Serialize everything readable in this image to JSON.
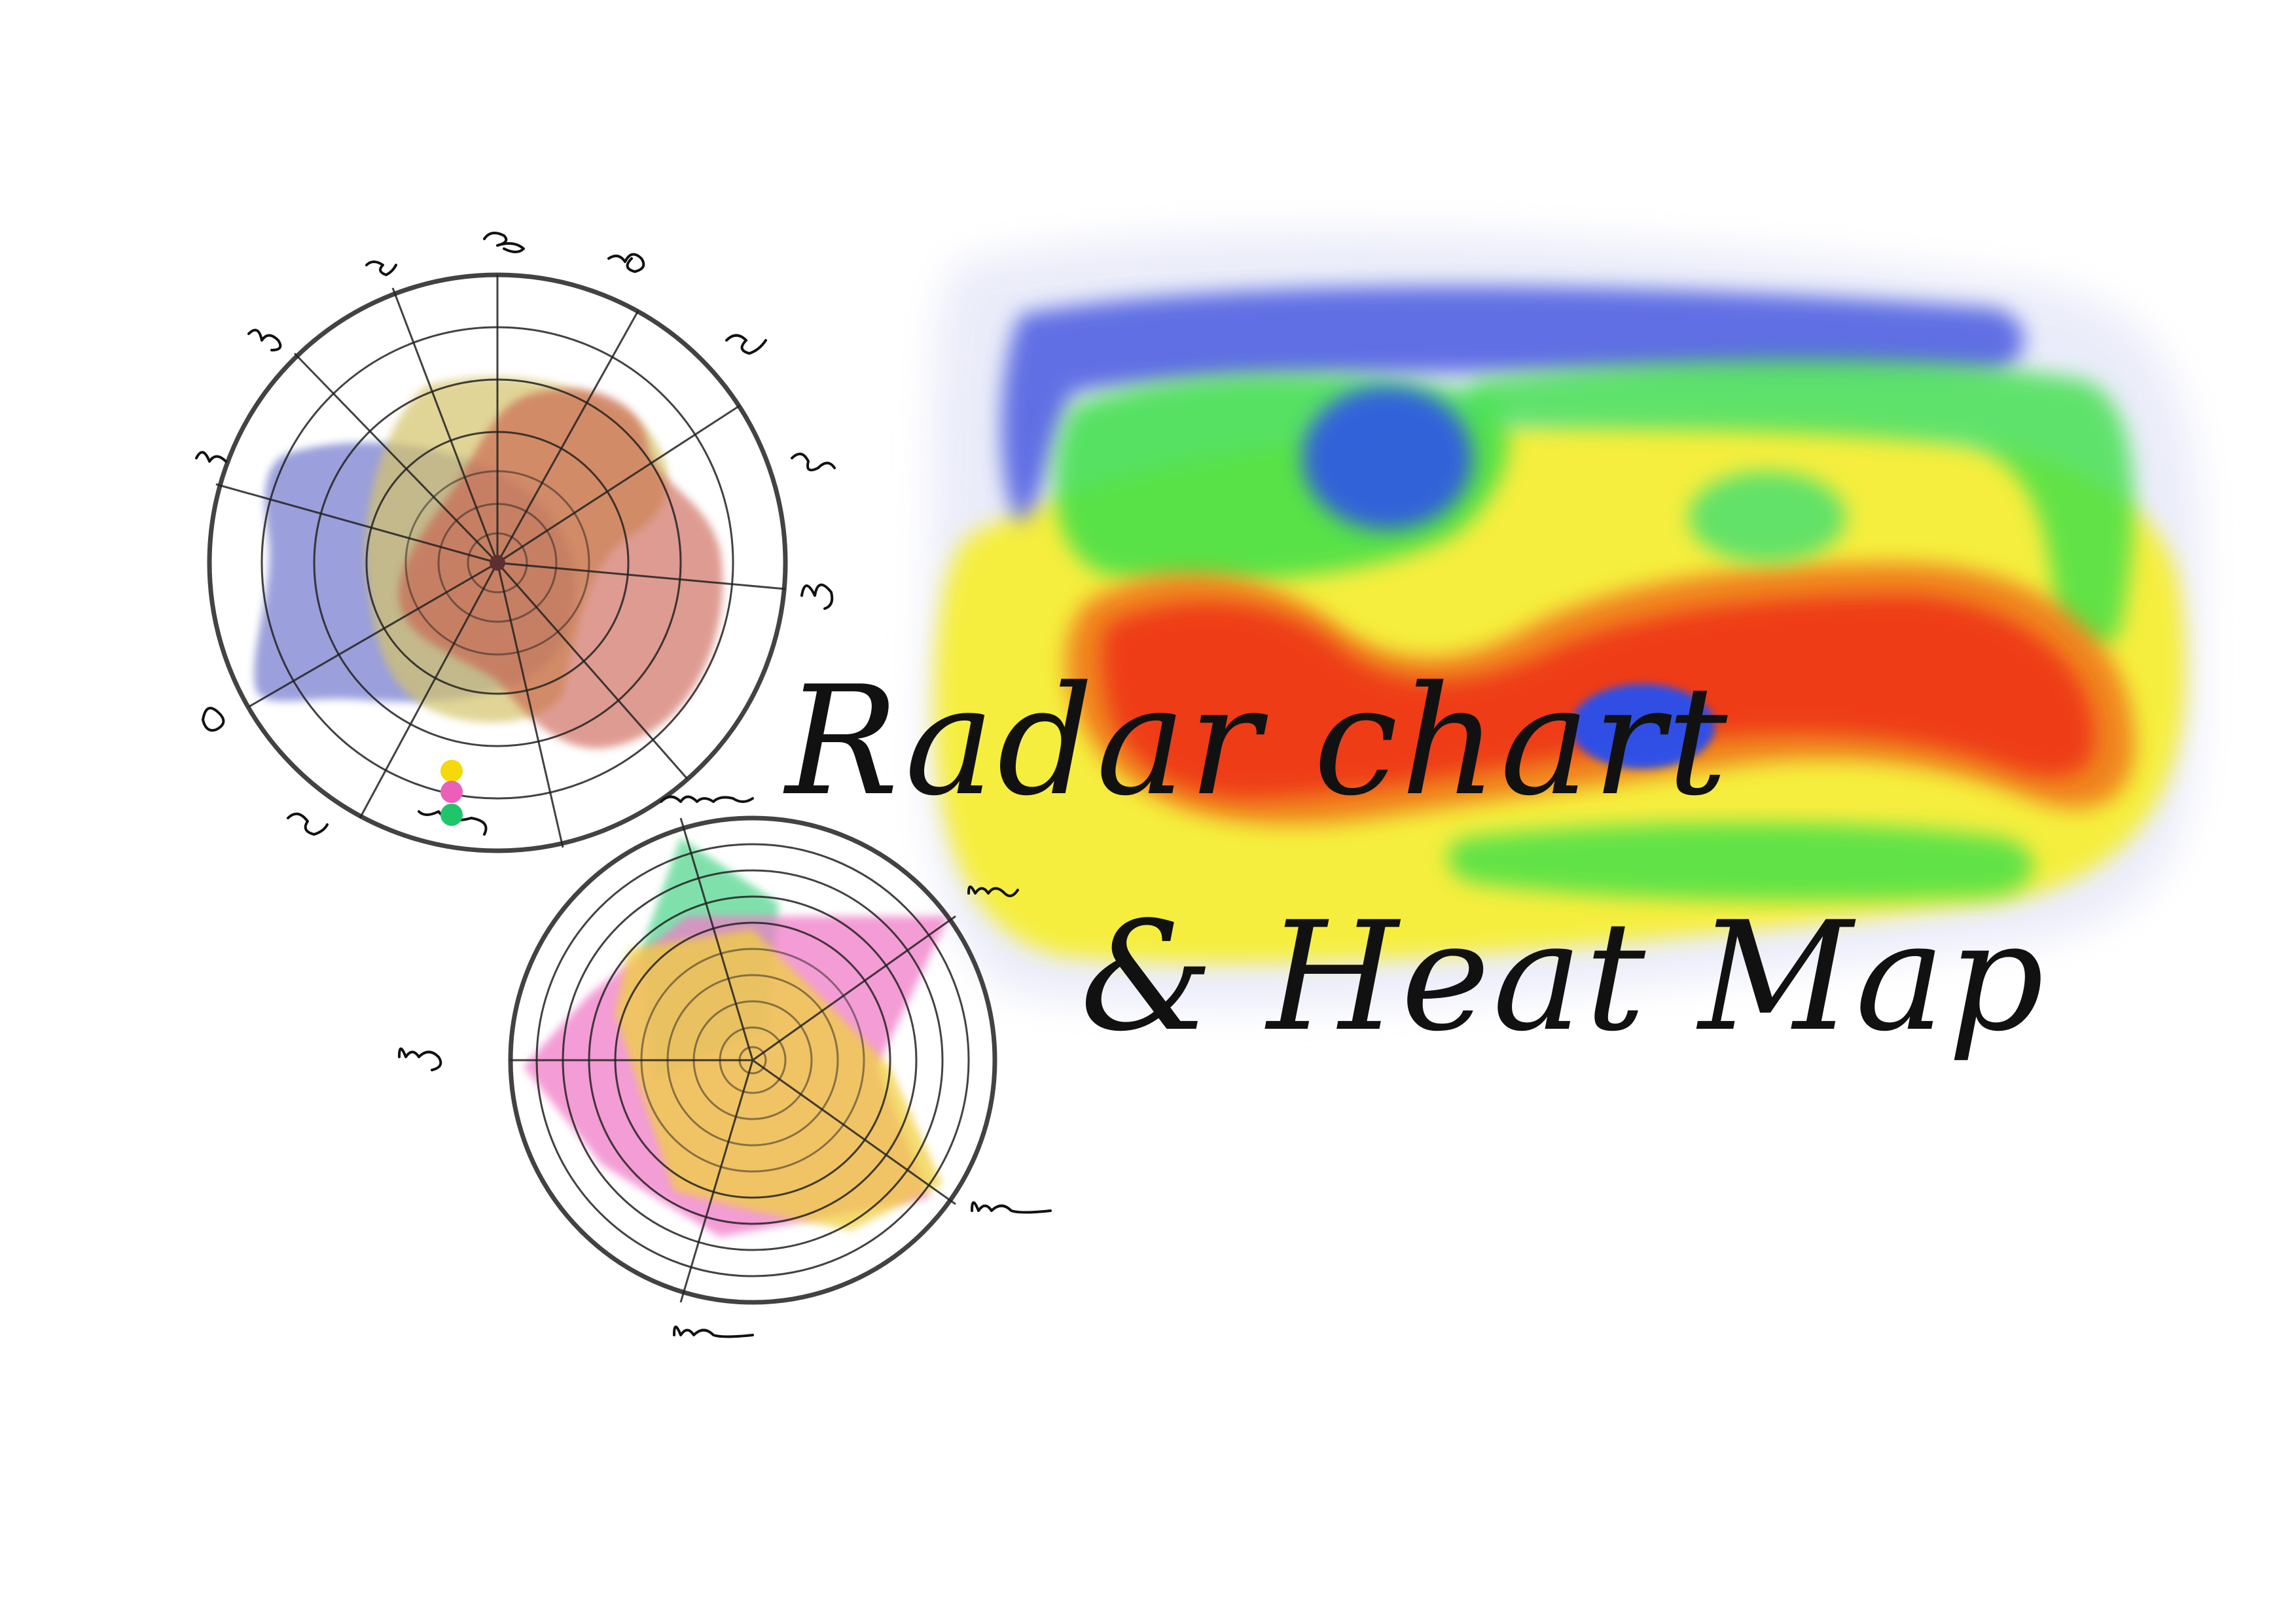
{
  "title": {
    "line1": "Radar chart",
    "line2": "& Heat Map"
  },
  "colors": {
    "radar1_series": [
      "#7a80d0",
      "#d4c46a",
      "#c95a4a"
    ],
    "radar2_series": [
      "#f07cc8",
      "#f0d040",
      "#4cd48a"
    ],
    "legend_dots": [
      "#f5d90a",
      "#ec5fb8",
      "#1fc56a"
    ],
    "heatmap_palette": [
      "#3b4fe0",
      "#3de04a",
      "#f7ef2a",
      "#f07a1a",
      "#ee3412"
    ]
  },
  "radar_chart_1": {
    "axis_labels_legible": false,
    "series_count": 3
  },
  "radar_chart_2": {
    "axis_labels_legible": false,
    "series_count": 3
  }
}
